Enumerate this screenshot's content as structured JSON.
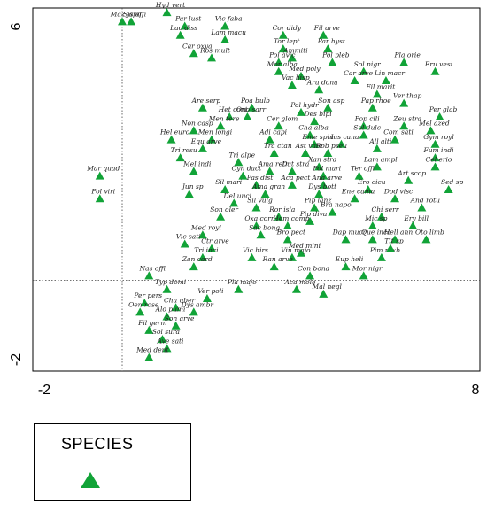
{
  "chart_data": {
    "type": "scatter",
    "title": "",
    "xlabel": "",
    "ylabel": "",
    "xlim": [
      -2,
      8
    ],
    "ylim": [
      -2,
      6
    ],
    "x_ticks": [
      "-2",
      "8"
    ],
    "y_ticks": [
      "6",
      "-2"
    ],
    "reference_lines": {
      "x": 0,
      "y": 0
    },
    "marker_color": "#11a337",
    "legend": {
      "title": "SPECIES",
      "marker": "triangle",
      "placement": "below-left"
    },
    "points": [
      {
        "label": "Maz japo",
        "x": 0.0,
        "y": 5.7
      },
      {
        "label": "Sis offi",
        "x": 0.2,
        "y": 5.7
      },
      {
        "label": "Hyd vert",
        "x": 1.0,
        "y": 5.9
      },
      {
        "label": "Par lust",
        "x": 1.4,
        "y": 5.6
      },
      {
        "label": "Lac diss",
        "x": 1.3,
        "y": 5.4
      },
      {
        "label": "Vic faba",
        "x": 2.3,
        "y": 5.6
      },
      {
        "label": "Lam macu",
        "x": 2.3,
        "y": 5.3
      },
      {
        "label": "Car oxya",
        "x": 1.6,
        "y": 5.0
      },
      {
        "label": "Ros mult",
        "x": 2.0,
        "y": 4.9
      },
      {
        "label": "Cor didy",
        "x": 3.6,
        "y": 5.4
      },
      {
        "label": "Fil arve",
        "x": 4.5,
        "y": 5.4
      },
      {
        "label": "Tor lept",
        "x": 3.6,
        "y": 5.1
      },
      {
        "label": "Par hyst",
        "x": 4.6,
        "y": 5.1
      },
      {
        "label": "Ammiti",
        "x": 3.8,
        "y": 4.9
      },
      {
        "label": "Pol avic",
        "x": 3.5,
        "y": 4.8
      },
      {
        "label": "Pol pleb",
        "x": 4.7,
        "y": 4.8
      },
      {
        "label": "Mor alba",
        "x": 3.5,
        "y": 4.6
      },
      {
        "label": "Med poly",
        "x": 4.0,
        "y": 4.5
      },
      {
        "label": "Sol nigr",
        "x": 5.4,
        "y": 4.6
      },
      {
        "label": "Pla orie",
        "x": 6.3,
        "y": 4.8
      },
      {
        "label": "Eru vesi",
        "x": 7.0,
        "y": 4.6
      },
      {
        "label": "Vac hisp",
        "x": 3.8,
        "y": 4.3
      },
      {
        "label": "Aru dona",
        "x": 4.4,
        "y": 4.2
      },
      {
        "label": "Car arve",
        "x": 5.2,
        "y": 4.4
      },
      {
        "label": "Lin macr",
        "x": 5.9,
        "y": 4.4
      },
      {
        "label": "Fil marit",
        "x": 5.7,
        "y": 4.1
      },
      {
        "label": "Ver thap",
        "x": 6.3,
        "y": 3.9
      },
      {
        "label": "Are serp",
        "x": 1.8,
        "y": 3.8
      },
      {
        "label": "Poa bulb",
        "x": 2.9,
        "y": 3.8
      },
      {
        "label": "Pol hydr",
        "x": 4.0,
        "y": 3.7
      },
      {
        "label": "Son asp",
        "x": 4.6,
        "y": 3.8
      },
      {
        "label": "Pap rhoe",
        "x": 5.6,
        "y": 3.8
      },
      {
        "label": "Per glab",
        "x": 7.1,
        "y": 3.6
      },
      {
        "label": "Het cont",
        "x": 2.4,
        "y": 3.6
      },
      {
        "label": "Ono sarr",
        "x": 2.8,
        "y": 3.6
      },
      {
        "label": "Des bipi",
        "x": 4.3,
        "y": 3.5
      },
      {
        "label": "Pop cili",
        "x": 5.4,
        "y": 3.4
      },
      {
        "label": "Zeu stra",
        "x": 6.3,
        "y": 3.4
      },
      {
        "label": "Non casp",
        "x": 1.6,
        "y": 3.3
      },
      {
        "label": "Men tere",
        "x": 2.2,
        "y": 3.4
      },
      {
        "label": "Cer glom",
        "x": 3.5,
        "y": 3.4
      },
      {
        "label": "Cha alba",
        "x": 4.2,
        "y": 3.2
      },
      {
        "label": "Sol dulc",
        "x": 5.4,
        "y": 3.2
      },
      {
        "label": "Mel azed",
        "x": 6.9,
        "y": 3.3
      },
      {
        "label": "Hel euro",
        "x": 1.1,
        "y": 3.1
      },
      {
        "label": "Men longi",
        "x": 2.0,
        "y": 3.1
      },
      {
        "label": "Adi capi",
        "x": 3.3,
        "y": 3.1
      },
      {
        "label": "Eme spin",
        "x": 4.3,
        "y": 3.0
      },
      {
        "label": "Ius cana",
        "x": 4.9,
        "y": 3.0
      },
      {
        "label": "Com sati",
        "x": 6.1,
        "y": 3.1
      },
      {
        "label": "Gym royl",
        "x": 7.0,
        "y": 3.0
      },
      {
        "label": "Equ arve",
        "x": 1.8,
        "y": 2.9
      },
      {
        "label": "Tra ctan",
        "x": 3.4,
        "y": 2.8
      },
      {
        "label": "Ast vate",
        "x": 4.1,
        "y": 2.8
      },
      {
        "label": "Rob pseu",
        "x": 4.6,
        "y": 2.8
      },
      {
        "label": "All alti",
        "x": 5.7,
        "y": 2.9
      },
      {
        "label": "Tri resu",
        "x": 1.3,
        "y": 2.7
      },
      {
        "label": "Tri alpe",
        "x": 2.6,
        "y": 2.6
      },
      {
        "label": "Fum indi",
        "x": 7.0,
        "y": 2.7
      },
      {
        "label": "Mel indi",
        "x": 1.6,
        "y": 2.4
      },
      {
        "label": "Xan stra",
        "x": 4.4,
        "y": 2.5
      },
      {
        "label": "Lam ampl",
        "x": 5.7,
        "y": 2.5
      },
      {
        "label": "Cel erio",
        "x": 7.0,
        "y": 2.5
      },
      {
        "label": "Cyn dact",
        "x": 2.7,
        "y": 2.3
      },
      {
        "label": "Ama retr",
        "x": 3.3,
        "y": 2.4
      },
      {
        "label": "Dat stra",
        "x": 3.8,
        "y": 2.4
      },
      {
        "label": "Pol mari",
        "x": 4.5,
        "y": 2.3
      },
      {
        "label": "Ter offi",
        "x": 5.3,
        "y": 2.3
      },
      {
        "label": "Art scop",
        "x": 6.4,
        "y": 2.2
      },
      {
        "label": "Sed sp",
        "x": 7.3,
        "y": 2.0
      },
      {
        "label": "Jun sp",
        "x": 1.5,
        "y": 1.9
      },
      {
        "label": "Pas dist",
        "x": 3.0,
        "y": 2.1
      },
      {
        "label": "Aca pect",
        "x": 3.8,
        "y": 2.1
      },
      {
        "label": "Ana arve",
        "x": 4.5,
        "y": 2.1
      },
      {
        "label": "Ero cicu",
        "x": 5.5,
        "y": 2.0
      },
      {
        "label": "Sil mari",
        "x": 2.3,
        "y": 2.0
      },
      {
        "label": "Ama gran",
        "x": 3.2,
        "y": 1.9
      },
      {
        "label": "Dys bott",
        "x": 4.4,
        "y": 1.9
      },
      {
        "label": "Ene cama",
        "x": 5.2,
        "y": 1.8
      },
      {
        "label": "Dod visc",
        "x": 6.1,
        "y": 1.8
      },
      {
        "label": "Del uuci",
        "x": 2.5,
        "y": 1.7
      },
      {
        "label": "Sil vulg",
        "x": 3.0,
        "y": 1.6
      },
      {
        "label": "Pip lanz",
        "x": 4.3,
        "y": 1.6
      },
      {
        "label": "Bra napo",
        "x": 4.7,
        "y": 1.5
      },
      {
        "label": "And rotu",
        "x": 6.7,
        "y": 1.6
      },
      {
        "label": "Son oler",
        "x": 2.2,
        "y": 1.4
      },
      {
        "label": "Ror isla",
        "x": 3.5,
        "y": 1.4
      },
      {
        "label": "Pip diva",
        "x": 4.2,
        "y": 1.3
      },
      {
        "label": "Chi serr",
        "x": 5.8,
        "y": 1.4
      },
      {
        "label": "Oxa corn",
        "x": 3.0,
        "y": 1.2
      },
      {
        "label": "Hem comp",
        "x": 3.7,
        "y": 1.2
      },
      {
        "label": "Mic sp",
        "x": 5.6,
        "y": 1.2
      },
      {
        "label": "Ery bill",
        "x": 6.5,
        "y": 1.2
      },
      {
        "label": "Med royl",
        "x": 1.8,
        "y": 1.0
      },
      {
        "label": "Sac bong",
        "x": 3.1,
        "y": 1.0
      },
      {
        "label": "Bro pect",
        "x": 3.7,
        "y": 0.9
      },
      {
        "label": "Dap mucr",
        "x": 5.0,
        "y": 0.9
      },
      {
        "label": "Que inca",
        "x": 5.6,
        "y": 0.9
      },
      {
        "label": "Hell ann",
        "x": 6.1,
        "y": 0.9
      },
      {
        "label": "Oto limb",
        "x": 6.8,
        "y": 0.9
      },
      {
        "label": "Vic sati",
        "x": 1.4,
        "y": 0.8
      },
      {
        "label": "Ctr arve",
        "x": 2.0,
        "y": 0.7
      },
      {
        "label": "Med mini",
        "x": 4.0,
        "y": 0.6
      },
      {
        "label": "Tri inci",
        "x": 1.8,
        "y": 0.5
      },
      {
        "label": "Vic hirs",
        "x": 2.9,
        "y": 0.5
      },
      {
        "label": "Vin majo",
        "x": 3.8,
        "y": 0.5
      },
      {
        "label": "Pim roxb",
        "x": 5.8,
        "y": 0.5
      },
      {
        "label": "Tit sp",
        "x": 6.0,
        "y": 0.7
      },
      {
        "label": "Zan card",
        "x": 1.6,
        "y": 0.3
      },
      {
        "label": "Ran arve",
        "x": 3.4,
        "y": 0.3
      },
      {
        "label": "Eup heli",
        "x": 5.0,
        "y": 0.3
      },
      {
        "label": "Con bona",
        "x": 4.2,
        "y": 0.1
      },
      {
        "label": "Mor nigr",
        "x": 5.4,
        "y": 0.1
      },
      {
        "label": "Nas offi",
        "x": 0.6,
        "y": 0.1
      },
      {
        "label": "Pla majo",
        "x": 2.6,
        "y": -0.2
      },
      {
        "label": "Aca mole",
        "x": 3.9,
        "y": -0.2
      },
      {
        "label": "Mal negl",
        "x": 4.5,
        "y": -0.3
      },
      {
        "label": "Typ domi",
        "x": 1.0,
        "y": -0.2
      },
      {
        "label": "Ver poli",
        "x": 1.9,
        "y": -0.4
      },
      {
        "label": "Per pers",
        "x": 0.5,
        "y": -0.5
      },
      {
        "label": "Cha uber",
        "x": 1.2,
        "y": -0.6
      },
      {
        "label": "Dys ambr",
        "x": 1.6,
        "y": -0.7
      },
      {
        "label": "Oen rose",
        "x": 0.4,
        "y": -0.7
      },
      {
        "label": "Alo pumi",
        "x": 1.0,
        "y": -0.8
      },
      {
        "label": "Son arve",
        "x": 1.2,
        "y": -1.0
      },
      {
        "label": "Fil germ",
        "x": 0.6,
        "y": -1.1
      },
      {
        "label": "Sol sura",
        "x": 0.9,
        "y": -1.3
      },
      {
        "label": "Ave sati",
        "x": 1.0,
        "y": -1.5
      },
      {
        "label": "Med dent",
        "x": 0.6,
        "y": -1.7
      },
      {
        "label": "Mar quad",
        "x": -0.5,
        "y": 2.3
      },
      {
        "label": "Pol viri",
        "x": -0.5,
        "y": 1.8
      }
    ]
  }
}
